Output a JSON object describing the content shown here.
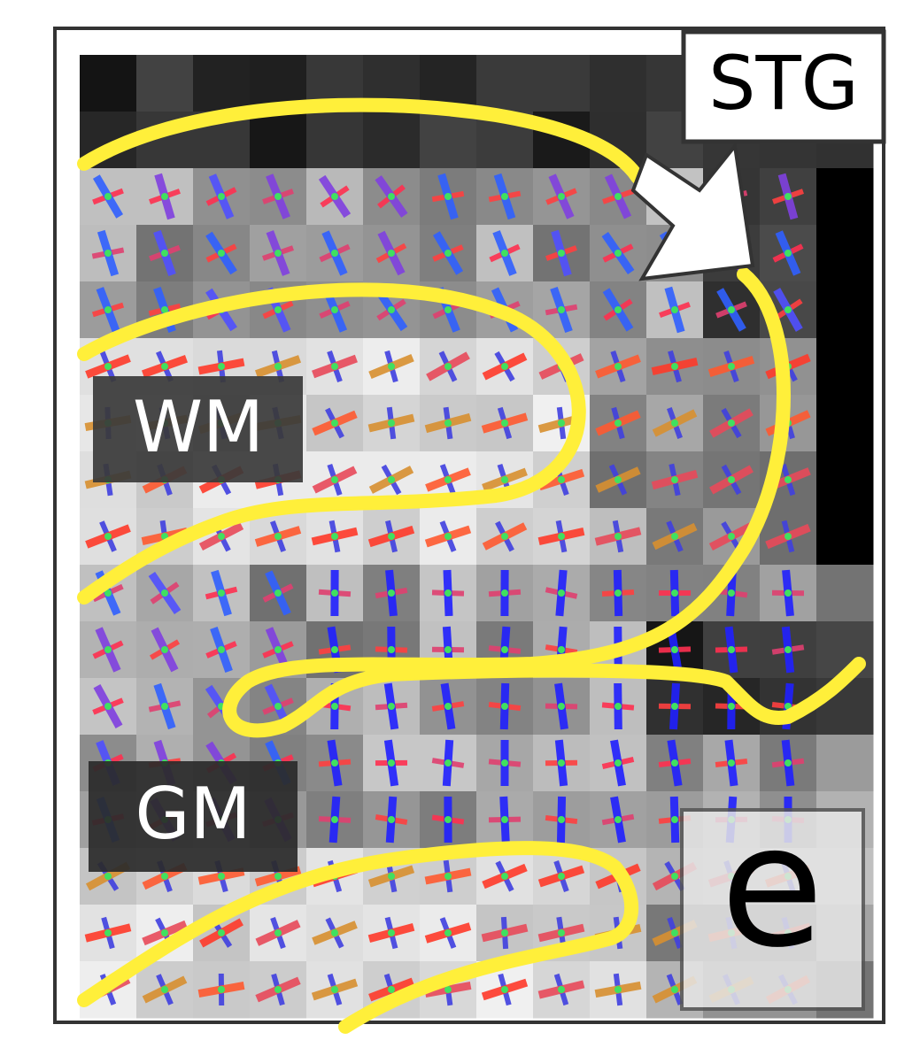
{
  "labels": {
    "stg": "STG",
    "wm": "WM",
    "gm": "GM",
    "panel": "e"
  }
}
